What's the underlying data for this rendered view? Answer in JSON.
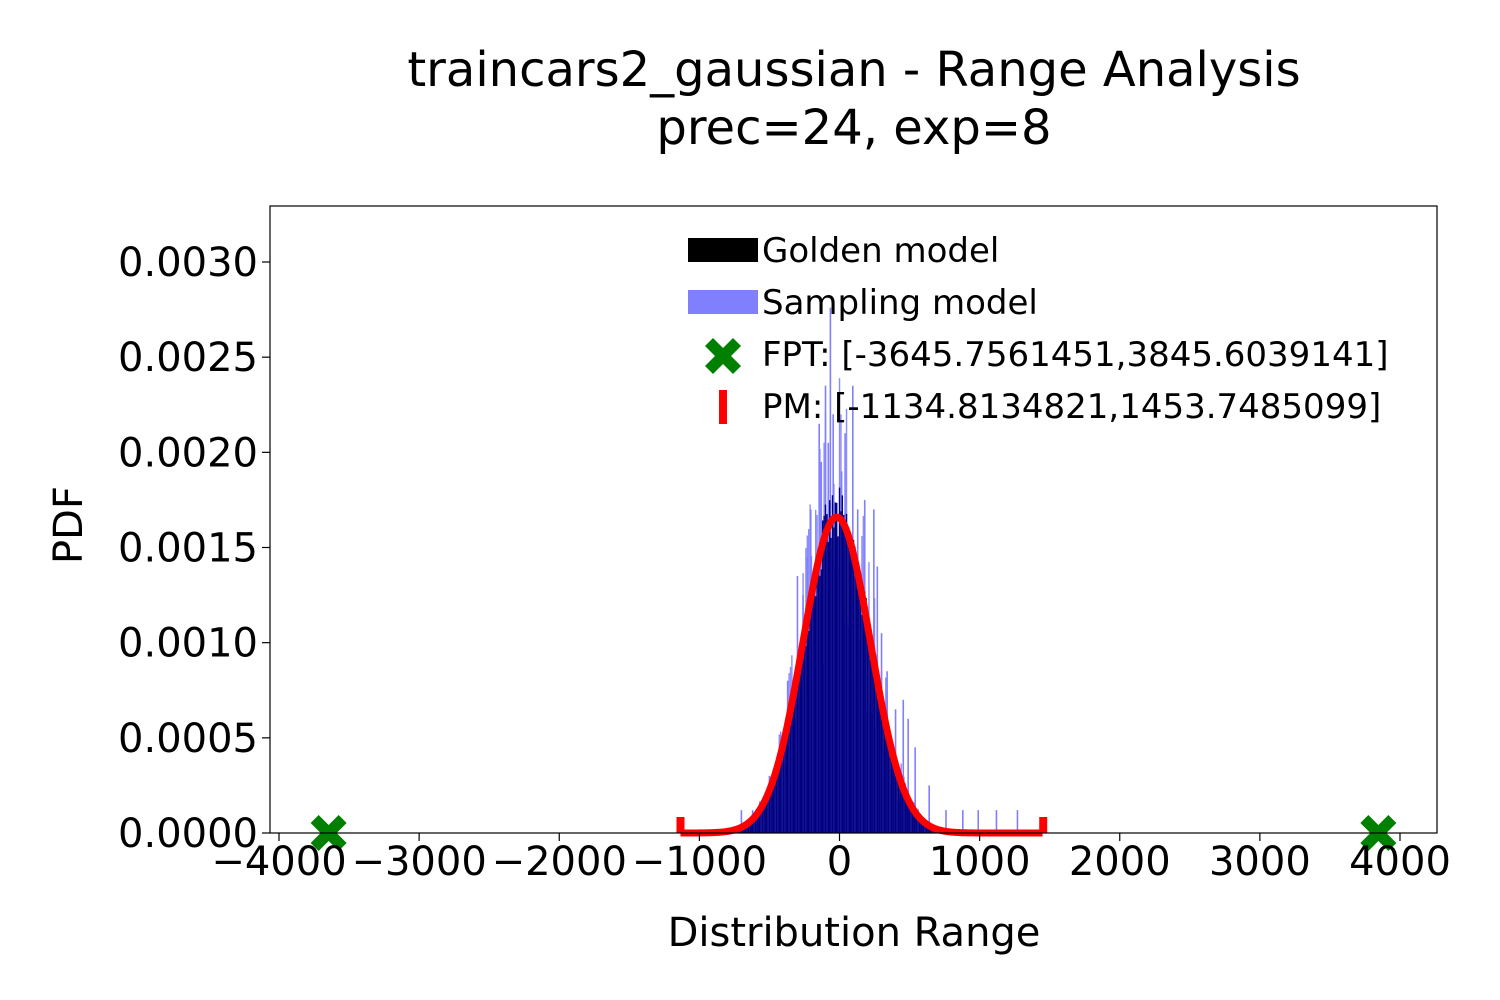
{
  "chart_data": {
    "type": "histogram",
    "title": "traincars2_gaussian - Range Analysis",
    "subtitle": "prec=24, exp=8",
    "xlabel": "Distribution Range",
    "ylabel": "PDF",
    "xlim": [
      -4100,
      4250
    ],
    "ylim": [
      0,
      0.00328
    ],
    "xticks": [
      -4000,
      -3000,
      -2000,
      -1000,
      0,
      1000,
      2000,
      3000,
      4000
    ],
    "xtick_labels": [
      "−4000",
      "−3000",
      "−2000",
      "−1000",
      "0",
      "1000",
      "2000",
      "3000",
      "4000"
    ],
    "yticks": [
      0,
      0.0005,
      0.001,
      0.0015,
      0.002,
      0.0025,
      0.003
    ],
    "ytick_labels": [
      "0.0000",
      "0.0005",
      "0.0010",
      "0.0015",
      "0.0020",
      "0.0025",
      "0.0030"
    ],
    "grid": false,
    "legend_position": "top-center",
    "colors": {
      "golden": "#000000",
      "sampling": "#8080ff",
      "overlap": "#000080",
      "fpt": "#008000",
      "pm": "#ff0000"
    },
    "distribution": {
      "golden_mean": -20,
      "golden_std": 240,
      "golden_peak": 0.00166,
      "sampling_spikes": [
        {
          "x": -145,
          "y": 0.00215
        },
        {
          "x": -130,
          "y": 0.00195
        },
        {
          "x": -100,
          "y": 0.00235
        },
        {
          "x": -80,
          "y": 0.00205
        },
        {
          "x": -65,
          "y": 0.00276
        },
        {
          "x": -45,
          "y": 0.0022
        },
        {
          "x": 15,
          "y": 0.0019
        },
        {
          "x": 40,
          "y": 0.0021
        },
        {
          "x": 95,
          "y": 0.00235
        },
        {
          "x": 130,
          "y": 0.0017
        },
        {
          "x": 180,
          "y": 0.00175
        },
        {
          "x": 245,
          "y": 0.0017
        },
        {
          "x": 270,
          "y": 0.0014
        },
        {
          "x": 300,
          "y": 0.00105
        },
        {
          "x": 340,
          "y": 0.00085
        },
        {
          "x": 400,
          "y": 0.00065
        },
        {
          "x": 455,
          "y": 0.0007
        },
        {
          "x": 490,
          "y": 0.0006
        },
        {
          "x": 540,
          "y": 0.00045
        },
        {
          "x": -300,
          "y": 0.00135
        },
        {
          "x": -260,
          "y": 0.00125
        },
        {
          "x": -230,
          "y": 0.00145
        },
        {
          "x": -205,
          "y": 0.0017
        },
        {
          "x": -370,
          "y": 0.0008
        },
        {
          "x": -430,
          "y": 0.00045
        },
        {
          "x": -500,
          "y": 0.0003
        },
        {
          "x": -620,
          "y": 0.00012
        },
        {
          "x": -700,
          "y": 0.00012
        },
        {
          "x": 640,
          "y": 0.00025
        },
        {
          "x": 760,
          "y": 0.00012
        },
        {
          "x": 880,
          "y": 0.00012
        },
        {
          "x": 990,
          "y": 0.00012
        },
        {
          "x": 1120,
          "y": 0.00012
        },
        {
          "x": 1270,
          "y": 0.00012
        }
      ]
    },
    "fpt": {
      "label": "FPT: [-3645.7561451,3845.6039141]",
      "min": -3645.7561451,
      "max": 3845.6039141
    },
    "pm": {
      "label": "PM: [-1134.8134821,1453.7485099]",
      "min": -1134.8134821,
      "max": 1453.7485099
    },
    "series": [
      {
        "name": "Golden model"
      },
      {
        "name": "Sampling model"
      }
    ]
  }
}
